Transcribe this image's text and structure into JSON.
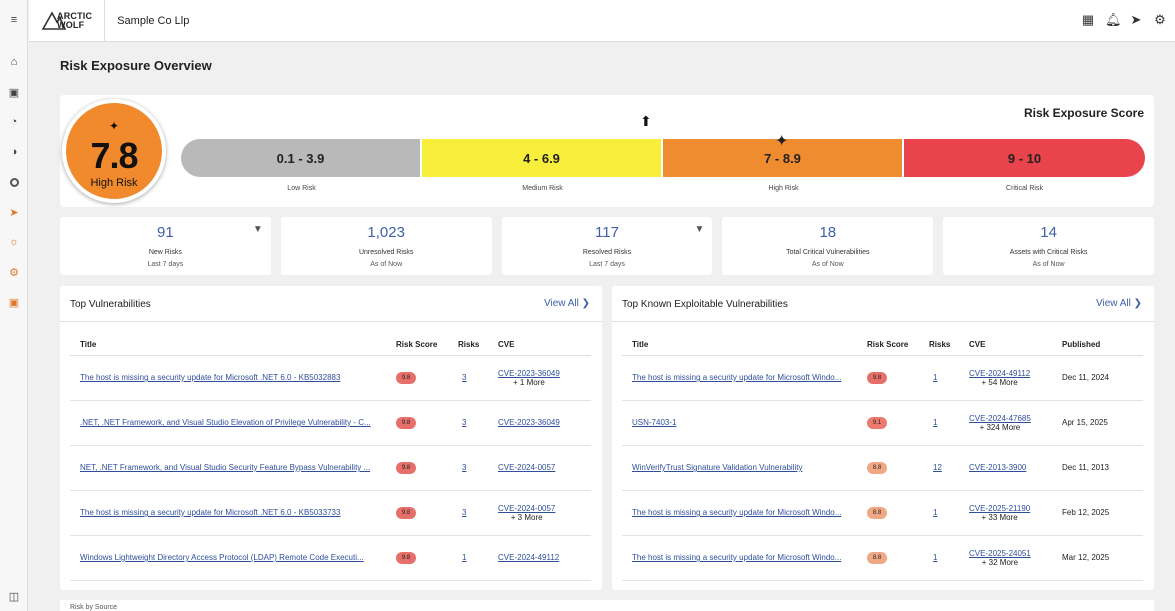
{
  "rail": {
    "items": [
      "menu-expand-icon",
      "home-icon",
      "briefcase-icon",
      "speedometer-icon",
      "shield-icon",
      "target-icon",
      "send-icon",
      "sun-icon",
      "gear-icon",
      "focus-icon",
      "sidebar-toggle-icon"
    ]
  },
  "header": {
    "logo_line1": "ARCTIC",
    "logo_line2": "WOLF",
    "org_name": "Sample Co Llp",
    "icons": [
      "apps-grid-icon",
      "bell-icon",
      "send-icon",
      "gear-icon"
    ]
  },
  "page": {
    "title": "Risk Exposure Overview"
  },
  "score": {
    "value": "7.8",
    "label": "High Risk",
    "card_title": "Risk Exposure Score",
    "segments": [
      {
        "range": "0.1 - 3.9",
        "label": "Low Risk",
        "color": "#b9b9b9"
      },
      {
        "range": "4 - 6.9",
        "label": "Medium Risk",
        "color": "#f8ee3c"
      },
      {
        "range": "7 - 8.9",
        "label": "High Risk",
        "color": "#f08c30"
      },
      {
        "range": "9 - 10",
        "label": "Critical Risk",
        "color": "#e9434b"
      }
    ]
  },
  "stats": [
    {
      "value": "91",
      "label": "New Risks",
      "sub": "Last 7 days",
      "filter": true
    },
    {
      "value": "1,023",
      "label": "Unresolved Risks",
      "sub": "As of Now",
      "filter": false
    },
    {
      "value": "117",
      "label": "Resolved Risks",
      "sub": "Last 7 days",
      "filter": true
    },
    {
      "value": "18",
      "label": "Total Critical Vulnerabilities",
      "sub": "As of Now",
      "filter": false
    },
    {
      "value": "14",
      "label": "Assets with Critical Risks",
      "sub": "As of Now",
      "filter": false
    }
  ],
  "top_vulns": {
    "title": "Top Vulnerabilities",
    "view_all": "View All",
    "columns": [
      "Title",
      "Risk Score",
      "Risks",
      "CVE"
    ],
    "rows": [
      {
        "title": "The host is missing a security update for Microsoft .NET 6.0 - KB5032883",
        "score": "9.8",
        "risks": "3",
        "cve": "CVE-2023-36049",
        "more": "+ 1 More"
      },
      {
        "title": ".NET, .NET Framework, and Visual Studio Elevation of Privilege Vulnerability - C...",
        "score": "9.8",
        "risks": "3",
        "cve": "CVE-2023-36049",
        "more": ""
      },
      {
        "title": "NET, .NET Framework, and Visual Studio Security Feature Bypass Vulnerability ...",
        "score": "9.8",
        "risks": "3",
        "cve": "CVE-2024-0057",
        "more": ""
      },
      {
        "title": "The host is missing a security update for Microsoft .NET 6.0 - KB5033733",
        "score": "9.8",
        "risks": "3",
        "cve": "CVE-2024-0057",
        "more": "+ 3 More"
      },
      {
        "title": "Windows Lightweight Directory Access Protocol (LDAP) Remote Code Executi...",
        "score": "9.8",
        "risks": "1",
        "cve": "CVE-2024-49112",
        "more": ""
      }
    ]
  },
  "kev": {
    "title": "Top Known Exploitable Vulnerabilities",
    "view_all": "View All",
    "columns": [
      "Title",
      "Risk Score",
      "Risks",
      "CVE",
      "Published"
    ],
    "rows": [
      {
        "title": "The host is missing a security update for Microsoft Windo...",
        "score": "9.8",
        "risks": "1",
        "cve": "CVE-2024-49112",
        "more": "+ 54 More",
        "published": "Dec 11, 2024"
      },
      {
        "title": "USN-7403-1",
        "score": "9.1",
        "risks": "1",
        "cve": "CVE-2024-47685",
        "more": "+ 324 More",
        "published": "Apr 15, 2025"
      },
      {
        "title": "WinVerifyTrust Signature Validation Vulnerability",
        "score": "8.8",
        "risks": "12",
        "cve": "CVE-2013-3900",
        "more": "",
        "published": "Dec 11, 2013"
      },
      {
        "title": "The host is missing a security update for Microsoft Windo...",
        "score": "8.8",
        "risks": "1",
        "cve": "CVE-2025-21190",
        "more": "+ 33 More",
        "published": "Feb 12, 2025"
      },
      {
        "title": "The host is missing a security update for Microsoft Windo...",
        "score": "8.8",
        "risks": "1",
        "cve": "CVE-2025-24051",
        "more": "+ 32 More",
        "published": "Mar 12, 2025"
      }
    ]
  },
  "bottom": {
    "label": "Risk by Source"
  }
}
